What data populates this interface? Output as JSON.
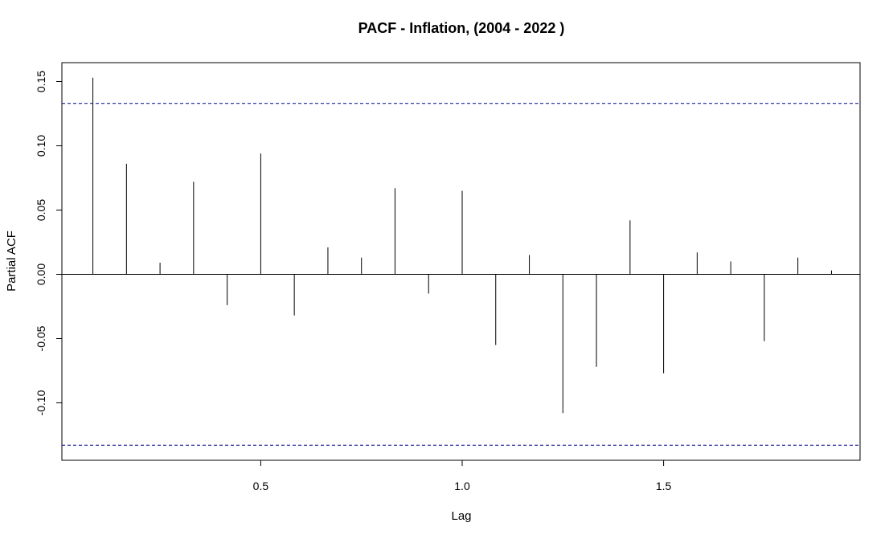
{
  "chart_data": {
    "type": "bar",
    "title": "PACF - Inflation, (2004 - 2022 )",
    "xlabel": "Lag",
    "ylabel": "Partial ACF",
    "xlim": [
      0,
      2
    ],
    "ylim": [
      -0.145,
      0.165
    ],
    "x_ticks": [
      0.5,
      1.0,
      1.5
    ],
    "x_tick_labels": [
      "0.5",
      "1.0",
      "1.5"
    ],
    "y_ticks": [
      -0.1,
      -0.05,
      0.0,
      0.05,
      0.1,
      0.15
    ],
    "y_tick_labels": [
      "-0.10",
      "-0.05",
      "0.00",
      "0.05",
      "0.10",
      "0.15"
    ],
    "confidence_bound": 0.133,
    "bound_color": "#00008B",
    "lags": [
      0.0833,
      0.1667,
      0.25,
      0.3333,
      0.4167,
      0.5,
      0.5833,
      0.6667,
      0.75,
      0.8333,
      0.9167,
      1.0,
      1.0833,
      1.1667,
      1.25,
      1.3333,
      1.4167,
      1.5,
      1.5833,
      1.6667,
      1.75,
      1.8333,
      1.9167
    ],
    "values": [
      0.153,
      0.086,
      0.009,
      0.072,
      -0.024,
      0.094,
      -0.032,
      0.021,
      0.013,
      0.067,
      -0.015,
      0.065,
      -0.055,
      0.015,
      -0.108,
      -0.072,
      0.042,
      -0.077,
      0.017,
      0.01,
      -0.052,
      0.013,
      0.003
    ],
    "grid": false,
    "legend": "none"
  }
}
